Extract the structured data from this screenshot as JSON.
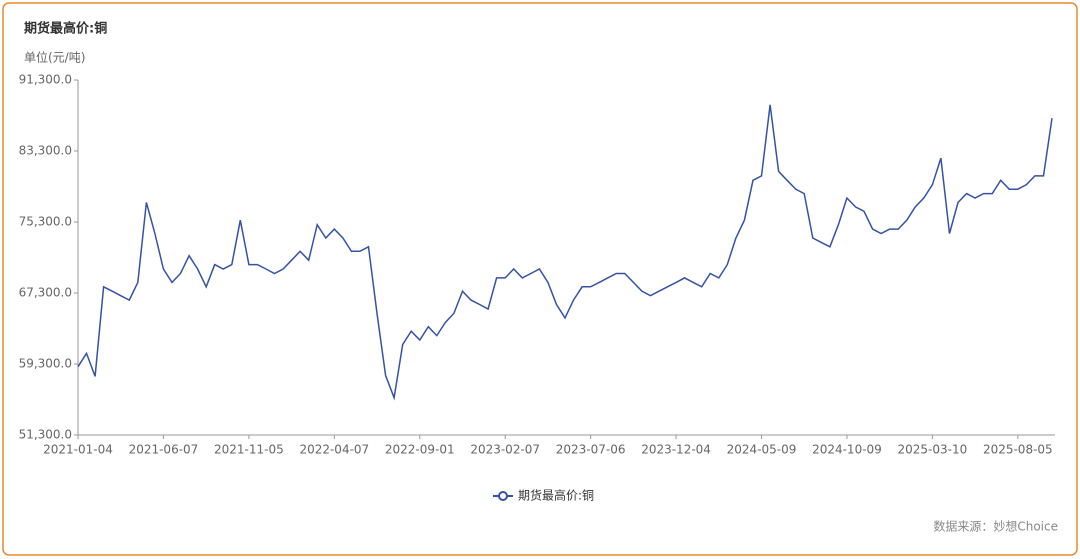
{
  "chart_data": {
    "type": "line",
    "title": "期货最高价:铜",
    "y_label": "单位(元/吨)",
    "source": "数据来源：妙想Choice",
    "categories": [
      "2021-01-04",
      null,
      null,
      null,
      null,
      null,
      null,
      null,
      null,
      null,
      "2021-06-07",
      null,
      null,
      null,
      null,
      null,
      null,
      null,
      null,
      null,
      "2021-11-05",
      null,
      null,
      null,
      null,
      null,
      null,
      null,
      null,
      null,
      "2022-04-07",
      null,
      null,
      null,
      null,
      null,
      null,
      null,
      null,
      null,
      "2022-09-01",
      null,
      null,
      null,
      null,
      null,
      null,
      null,
      null,
      null,
      "2023-02-07",
      null,
      null,
      null,
      null,
      null,
      null,
      null,
      null,
      null,
      "2023-07-06",
      null,
      null,
      null,
      null,
      null,
      null,
      null,
      null,
      null,
      "2023-12-04",
      null,
      null,
      null,
      null,
      null,
      null,
      null,
      null,
      null,
      "2024-05-09",
      null,
      null,
      null,
      null,
      null,
      null,
      null,
      null,
      null,
      "2024-10-09",
      null,
      null,
      null,
      null,
      null,
      null,
      null,
      null,
      null,
      "2025-03-10",
      null,
      null,
      null,
      null,
      null,
      null,
      null,
      null,
      null,
      "2025-08-05",
      null,
      null,
      null,
      null
    ],
    "series": [
      {
        "name": "期货最高价:铜",
        "color": "#3552a4",
        "values": [
          59000,
          60500,
          57900,
          68000,
          67500,
          67000,
          66500,
          68500,
          77500,
          74000,
          70000,
          68500,
          69500,
          71500,
          70000,
          68000,
          70500,
          70000,
          70500,
          75500,
          70500,
          70500,
          70000,
          69500,
          70000,
          71000,
          72000,
          71000,
          75000,
          73500,
          74500,
          73500,
          72000,
          72000,
          72500,
          65000,
          58000,
          55500,
          61500,
          63000,
          62000,
          63500,
          62500,
          64000,
          65000,
          67500,
          66500,
          66000,
          65500,
          69000,
          69000,
          70000,
          69000,
          69500,
          70000,
          68500,
          66000,
          64500,
          66500,
          68000,
          68000,
          68500,
          69000,
          69500,
          69500,
          68500,
          67500,
          67000,
          67500,
          68000,
          68500,
          69000,
          68500,
          68000,
          69500,
          69000,
          70500,
          73500,
          75500,
          80000,
          80500,
          88500,
          81000,
          80000,
          79000,
          78500,
          73500,
          73000,
          72500,
          75000,
          78000,
          77000,
          76500,
          74500,
          74000,
          74500,
          74500,
          75500,
          77000,
          78000,
          79500,
          82500,
          74000,
          77500,
          78500,
          78000,
          78500,
          78500,
          80000,
          79000,
          79000,
          79500,
          80500,
          80500,
          87000
        ]
      }
    ],
    "ylim": [
      51300,
      91300
    ],
    "yticks": [
      {
        "value": 51300,
        "label": "51,300.0"
      },
      {
        "value": 59300,
        "label": "59,300.0"
      },
      {
        "value": 67300,
        "label": "67,300.0"
      },
      {
        "value": 75300,
        "label": "75,300.0"
      },
      {
        "value": 83300,
        "label": "83,300.0"
      },
      {
        "value": 91300,
        "label": "91,300.0"
      }
    ],
    "legend": "bottom"
  }
}
